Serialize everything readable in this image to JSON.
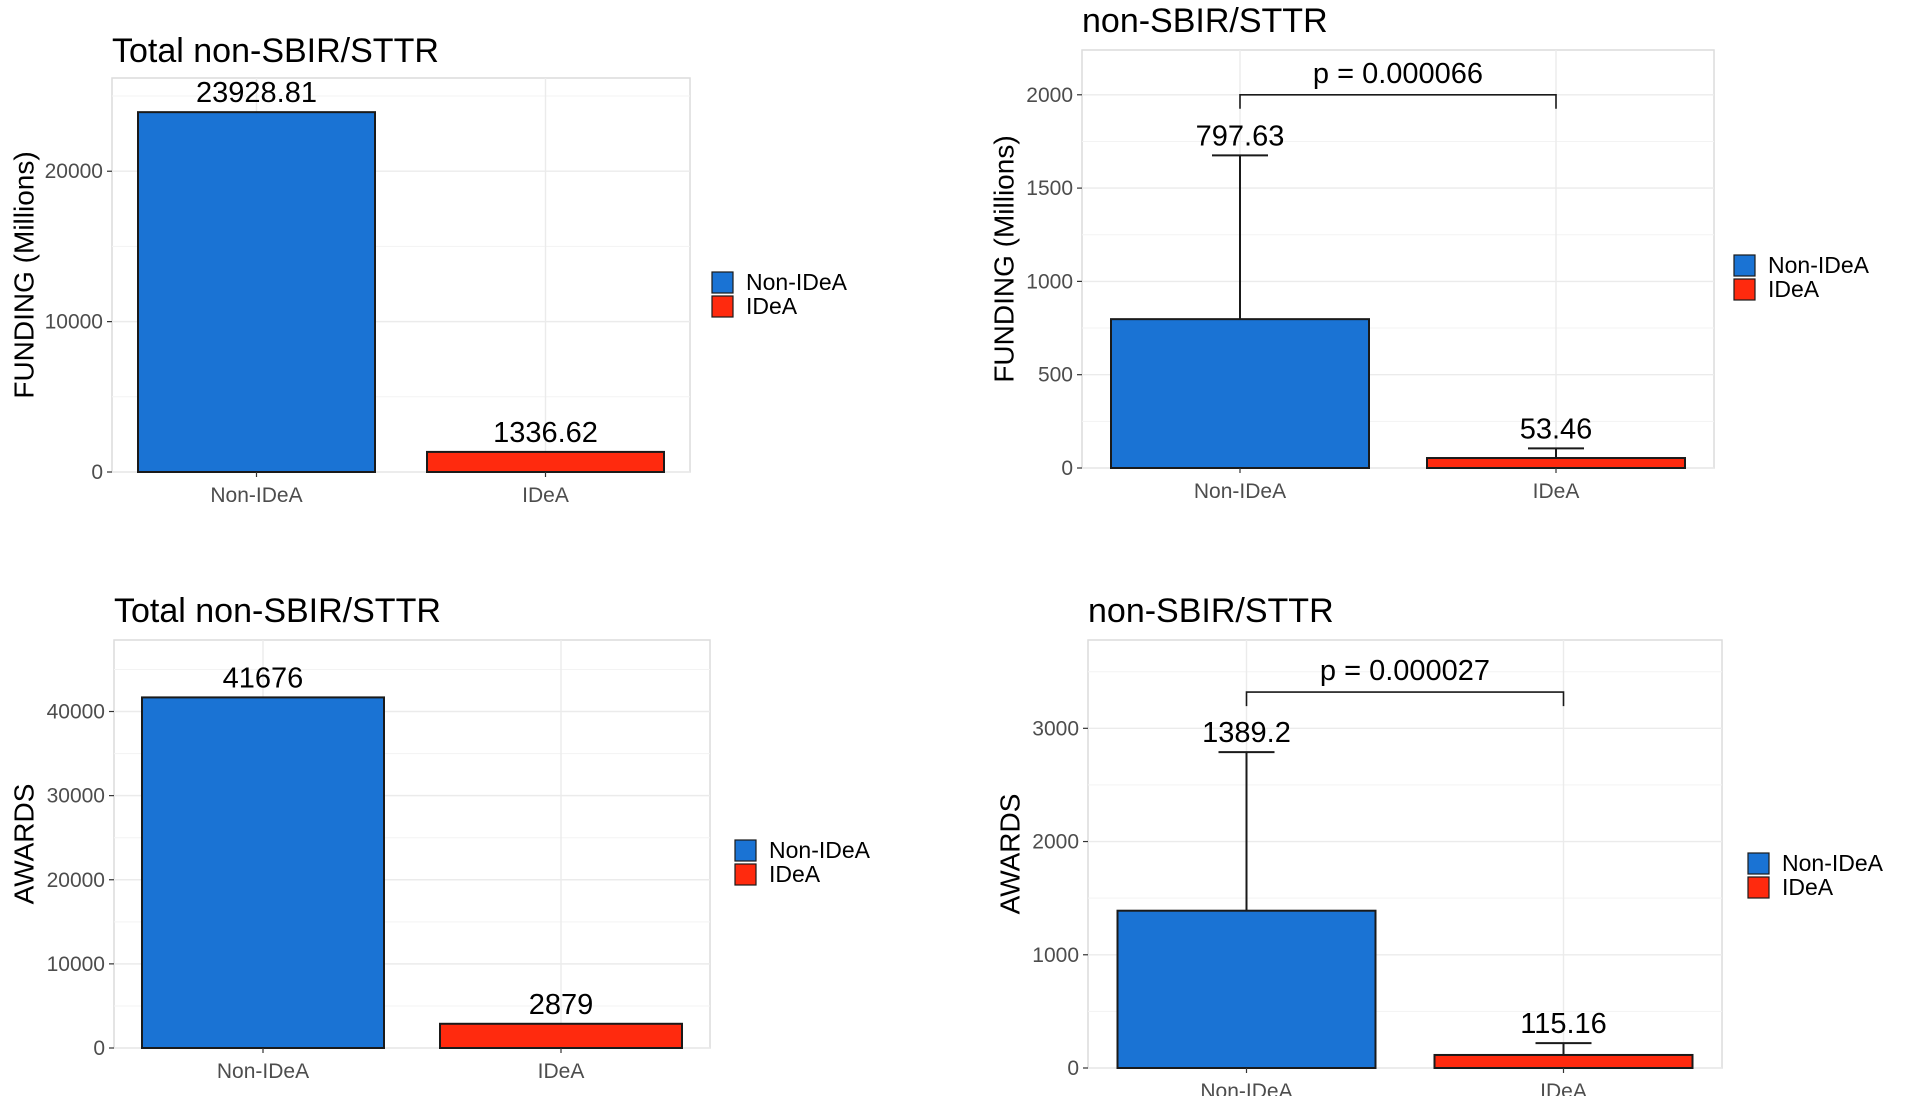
{
  "chart_data": [
    {
      "type": "bar",
      "title": "Total non-SBIR/STTR",
      "xlabel": "",
      "ylabel": "FUNDING (Millions)",
      "categories": [
        "Non-IDeA",
        "IDeA"
      ],
      "values": [
        23928.81,
        1336.62
      ],
      "value_labels": [
        "23928.81",
        "1336.62"
      ],
      "colors": [
        "#1a73d4",
        "#ff2a0e"
      ],
      "ylim": [
        0,
        26200
      ],
      "yticks": [
        0,
        10000,
        20000
      ],
      "grid": true,
      "legend": {
        "entries": [
          "Non-IDeA",
          "IDeA"
        ],
        "placement": "right"
      }
    },
    {
      "type": "bar",
      "title": "non-SBIR/STTR",
      "xlabel": "",
      "ylabel": "FUNDING (Millions)",
      "categories": [
        "Non-IDeA",
        "IDeA"
      ],
      "values": [
        797.63,
        53.46
      ],
      "value_labels": [
        "797.63",
        "53.46"
      ],
      "error_upper": [
        1675,
        105
      ],
      "colors": [
        "#1a73d4",
        "#ff2a0e"
      ],
      "ylim": [
        0,
        2240
      ],
      "yticks": [
        0,
        500,
        1000,
        1500,
        2000
      ],
      "grid": true,
      "annotation": {
        "text": "p = 0.000066",
        "bracket_y": 2000
      },
      "legend": {
        "entries": [
          "Non-IDeA",
          "IDeA"
        ],
        "placement": "right"
      }
    },
    {
      "type": "bar",
      "title": "Total non-SBIR/STTR",
      "xlabel": "",
      "ylabel": "AWARDS",
      "categories": [
        "Non-IDeA",
        "IDeA"
      ],
      "values": [
        41676,
        2879
      ],
      "value_labels": [
        "41676",
        "2879"
      ],
      "colors": [
        "#1a73d4",
        "#ff2a0e"
      ],
      "ylim": [
        0,
        48500
      ],
      "yticks": [
        0,
        10000,
        20000,
        30000,
        40000
      ],
      "grid": true,
      "legend": {
        "entries": [
          "Non-IDeA",
          "IDeA"
        ],
        "placement": "right"
      }
    },
    {
      "type": "bar",
      "title": "non-SBIR/STTR",
      "xlabel": "",
      "ylabel": "AWARDS",
      "categories": [
        "Non-IDeA",
        "IDeA"
      ],
      "values": [
        1389.2,
        115.16
      ],
      "value_labels": [
        "1389.2",
        "115.16"
      ],
      "error_upper": [
        2790,
        220
      ],
      "colors": [
        "#1a73d4",
        "#ff2a0e"
      ],
      "ylim": [
        0,
        3780
      ],
      "yticks": [
        0,
        1000,
        2000,
        3000
      ],
      "grid": true,
      "annotation": {
        "text": "p = 0.000027",
        "bracket_y": 3320
      },
      "legend": {
        "entries": [
          "Non-IDeA",
          "IDeA"
        ],
        "placement": "right"
      }
    }
  ]
}
